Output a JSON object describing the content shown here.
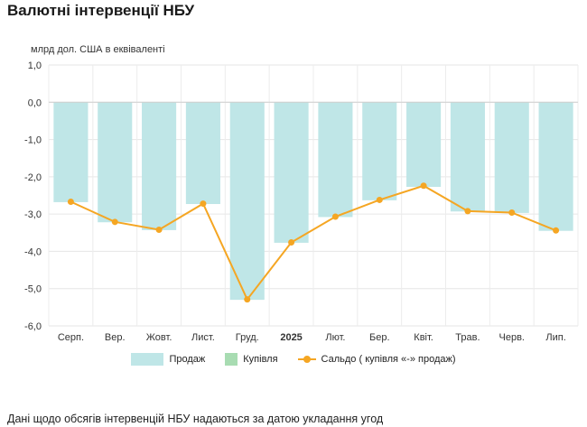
{
  "title": "Валютні інтервенції НБУ",
  "footnote": "Дані щодо обсягів інтервенцій НБУ надаються за датою укладання угод",
  "chart_data": {
    "type": "bar",
    "unit_label": "млрд дол. США в еквіваленті",
    "categories": [
      "Серп.",
      "Вер.",
      "Жовт.",
      "Лист.",
      "Груд.",
      "2025",
      "Лют.",
      "Бер.",
      "Квіт.",
      "Трав.",
      "Черв.",
      "Лип."
    ],
    "bold_categories": [
      "2025"
    ],
    "ylim": [
      -6.0,
      1.0
    ],
    "yticks": [
      "1,0",
      "0,0",
      "-1,0",
      "-2,0",
      "-3,0",
      "-4,0",
      "-5,0",
      "-6,0"
    ],
    "ytick_values": [
      1,
      0,
      -1,
      -2,
      -3,
      -4,
      -5,
      -6
    ],
    "grid": true,
    "legend_position": "bottom",
    "series": [
      {
        "name": "Продаж",
        "type": "bar",
        "color": "#bfe6e7",
        "values": [
          -2.68,
          -3.22,
          -3.43,
          -2.73,
          -5.3,
          -3.77,
          -3.08,
          -2.63,
          -2.27,
          -2.93,
          -2.97,
          -3.45
        ]
      },
      {
        "name": "Купівля",
        "type": "bar",
        "color": "#a8dcb2",
        "values": [
          0.005,
          0.005,
          0.005,
          0.005,
          0.005,
          0.005,
          0.005,
          0.005,
          0.005,
          0.005,
          0.005,
          0.005
        ]
      },
      {
        "name": "Сальдо ( купівля «-» продаж)",
        "type": "line",
        "color": "#f5a623",
        "values": [
          -2.67,
          -3.21,
          -3.42,
          -2.72,
          -5.29,
          -3.76,
          -3.07,
          -2.62,
          -2.24,
          -2.92,
          -2.96,
          -3.44
        ]
      }
    ]
  }
}
